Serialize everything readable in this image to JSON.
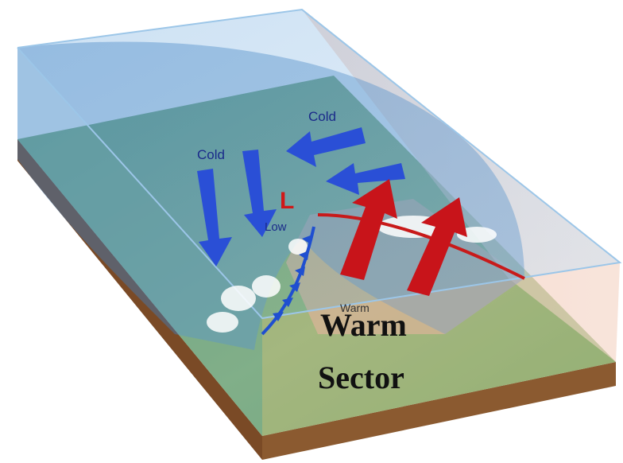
{
  "labels": {
    "cold_north": "Cold",
    "cold_west": "Cold",
    "low_symbol": "L",
    "low": "Low",
    "warm_small": "Warm",
    "warm_sector_line1": "Warm",
    "warm_sector_line2": "Sector"
  }
}
